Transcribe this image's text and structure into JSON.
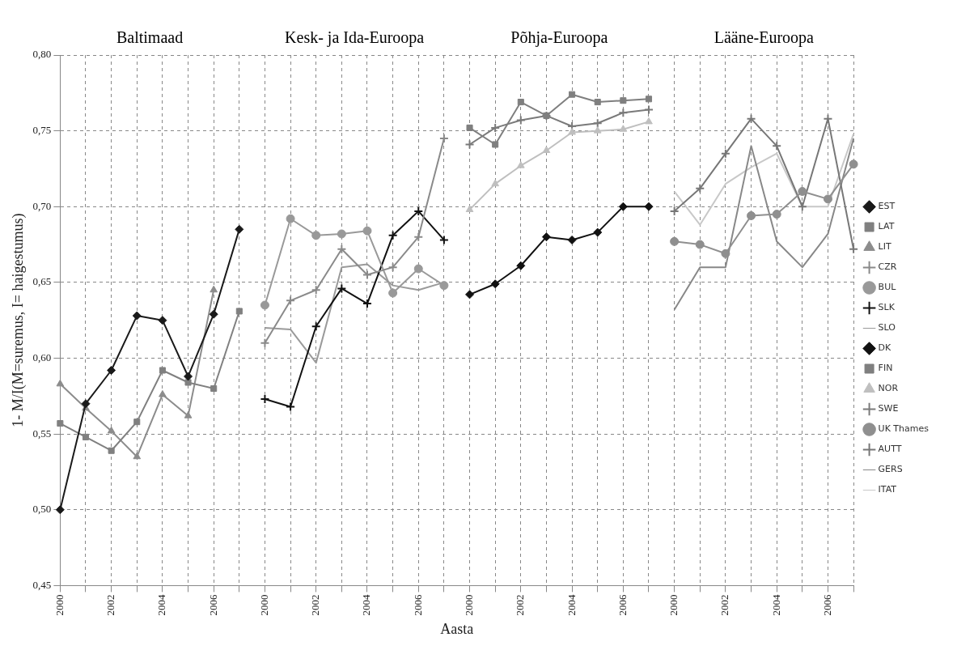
{
  "chart_data": {
    "type": "line",
    "xlabel": "Aasta",
    "ylabel": "1- M/I(M=suremus, I= haigestumus)",
    "annotations": [
      "Baltimaad",
      "Kesk- ja Ida-Euroopa",
      "Põhja-Euroopa",
      "Lääne-Euroopa"
    ],
    "categories": [
      "2000",
      null,
      "2002",
      null,
      "2004",
      null,
      "2006",
      null,
      "2000",
      null,
      "2002",
      null,
      "2004",
      null,
      "2006",
      null,
      "2000",
      null,
      "2002",
      null,
      "2004",
      null,
      "2006",
      null,
      "2000",
      null,
      "2002",
      null,
      "2004",
      null,
      "2006",
      null
    ],
    "ylim": [
      0.45,
      0.8
    ],
    "yticks": [
      {
        "value": 0.45,
        "label": "0,45"
      },
      {
        "value": 0.5,
        "label": "0,50"
      },
      {
        "value": 0.55,
        "label": "0,55"
      },
      {
        "value": 0.6,
        "label": "0,60"
      },
      {
        "value": 0.65,
        "label": "0,65"
      },
      {
        "value": 0.7,
        "label": "0,70"
      },
      {
        "value": 0.75,
        "label": "0,75"
      },
      {
        "value": 0.8,
        "label": "0,80"
      }
    ],
    "grid": true,
    "legend": "right",
    "series": [
      {
        "name": "EST",
        "color": "#1a1a1a",
        "marker": "diamond",
        "values": [
          0.5,
          0.57,
          0.592,
          0.628,
          0.625,
          0.588,
          0.629,
          0.685,
          null,
          null,
          null,
          null,
          null,
          null,
          null,
          null,
          null,
          null,
          null,
          null,
          null,
          null,
          null,
          null,
          null,
          null,
          null,
          null,
          null,
          null,
          null,
          null
        ]
      },
      {
        "name": "LAT",
        "color": "#808080",
        "marker": "square",
        "values": [
          0.557,
          0.548,
          0.539,
          0.558,
          0.592,
          0.584,
          0.58,
          0.631,
          null,
          null,
          null,
          null,
          null,
          null,
          null,
          null,
          null,
          null,
          null,
          null,
          null,
          null,
          null,
          null,
          null,
          null,
          null,
          null,
          null,
          null,
          null,
          null
        ]
      },
      {
        "name": "LIT",
        "color": "#8c8c8c",
        "marker": "triangle",
        "values": [
          0.583,
          0.567,
          0.552,
          0.535,
          0.576,
          0.562,
          0.645,
          null,
          null,
          null,
          null,
          null,
          null,
          null,
          null,
          null,
          null,
          null,
          null,
          null,
          null,
          null,
          null,
          null,
          null,
          null,
          null,
          null,
          null,
          null,
          null,
          null
        ]
      },
      {
        "name": "CZR",
        "color": "#8a8a8a",
        "marker": "cross",
        "values": [
          null,
          null,
          null,
          null,
          null,
          null,
          null,
          null,
          0.61,
          0.638,
          0.645,
          0.672,
          0.655,
          0.66,
          0.68,
          0.745,
          null,
          null,
          null,
          null,
          null,
          null,
          null,
          null,
          null,
          null,
          null,
          null,
          null,
          null,
          null,
          null
        ]
      },
      {
        "name": "BUL",
        "color": "#999999",
        "marker": "circle",
        "values": [
          null,
          null,
          null,
          null,
          null,
          null,
          null,
          null,
          0.635,
          0.692,
          0.681,
          0.682,
          0.684,
          0.643,
          0.659,
          0.648,
          null,
          null,
          null,
          null,
          null,
          null,
          null,
          null,
          null,
          null,
          null,
          null,
          null,
          null,
          null,
          null
        ]
      },
      {
        "name": "SLK",
        "color": "#111111",
        "marker": "cross",
        "values": [
          null,
          null,
          null,
          null,
          null,
          null,
          null,
          null,
          0.573,
          0.568,
          0.621,
          0.646,
          0.636,
          0.681,
          0.697,
          0.678,
          null,
          null,
          null,
          null,
          null,
          null,
          null,
          null,
          null,
          null,
          null,
          null,
          null,
          null,
          null,
          null
        ]
      },
      {
        "name": "SLO",
        "color": "#9a9a9a",
        "marker": "none",
        "values": [
          null,
          null,
          null,
          null,
          null,
          null,
          null,
          null,
          0.62,
          0.619,
          0.597,
          0.66,
          0.662,
          0.648,
          0.645,
          0.65,
          null,
          null,
          null,
          null,
          null,
          null,
          null,
          null,
          null,
          null,
          null,
          null,
          null,
          null,
          null,
          null
        ]
      },
      {
        "name": "DK",
        "color": "#111111",
        "marker": "diamond",
        "values": [
          null,
          null,
          null,
          null,
          null,
          null,
          null,
          null,
          null,
          null,
          null,
          null,
          null,
          null,
          null,
          null,
          0.642,
          0.649,
          0.661,
          0.68,
          0.678,
          0.683,
          0.7,
          0.7,
          null,
          null,
          null,
          null,
          null,
          null,
          null,
          null
        ]
      },
      {
        "name": "FIN",
        "color": "#7f7f7f",
        "marker": "square",
        "values": [
          null,
          null,
          null,
          null,
          null,
          null,
          null,
          null,
          null,
          null,
          null,
          null,
          null,
          null,
          null,
          null,
          0.752,
          0.741,
          0.769,
          0.76,
          0.774,
          0.769,
          0.77,
          0.771,
          null,
          null,
          null,
          null,
          null,
          null,
          null,
          null
        ]
      },
      {
        "name": "NOR",
        "color": "#bfbfbf",
        "marker": "triangle",
        "values": [
          null,
          null,
          null,
          null,
          null,
          null,
          null,
          null,
          null,
          null,
          null,
          null,
          null,
          null,
          null,
          null,
          0.698,
          0.715,
          0.727,
          0.737,
          0.749,
          0.75,
          0.751,
          0.756,
          null,
          null,
          null,
          null,
          null,
          null,
          null,
          null
        ]
      },
      {
        "name": "SWE",
        "color": "#7a7a7a",
        "marker": "cross",
        "values": [
          null,
          null,
          null,
          null,
          null,
          null,
          null,
          null,
          null,
          null,
          null,
          null,
          null,
          null,
          null,
          null,
          0.741,
          0.752,
          0.757,
          0.76,
          0.753,
          0.755,
          0.762,
          0.764,
          null,
          null,
          null,
          null,
          null,
          null,
          null,
          null
        ]
      },
      {
        "name": "UK Thames",
        "color": "#8f8f8f",
        "marker": "circle",
        "values": [
          null,
          null,
          null,
          null,
          null,
          null,
          null,
          null,
          null,
          null,
          null,
          null,
          null,
          null,
          null,
          null,
          null,
          null,
          null,
          null,
          null,
          null,
          null,
          null,
          0.677,
          0.675,
          0.669,
          0.694,
          0.695,
          0.71,
          0.705,
          0.728
        ]
      },
      {
        "name": "AUTT",
        "color": "#777777",
        "marker": "cross",
        "values": [
          null,
          null,
          null,
          null,
          null,
          null,
          null,
          null,
          null,
          null,
          null,
          null,
          null,
          null,
          null,
          null,
          null,
          null,
          null,
          null,
          null,
          null,
          null,
          null,
          0.697,
          0.712,
          0.735,
          0.758,
          0.74,
          0.7,
          0.758,
          0.672
        ]
      },
      {
        "name": "GERS",
        "color": "#888888",
        "marker": "none",
        "values": [
          null,
          null,
          null,
          null,
          null,
          null,
          null,
          null,
          null,
          null,
          null,
          null,
          null,
          null,
          null,
          null,
          null,
          null,
          null,
          null,
          null,
          null,
          null,
          null,
          0.632,
          0.66,
          0.66,
          0.74,
          0.677,
          0.66,
          0.682,
          0.745
        ]
      },
      {
        "name": "ITAT",
        "color": "#c8c8c8",
        "marker": "none",
        "values": [
          null,
          null,
          null,
          null,
          null,
          null,
          null,
          null,
          null,
          null,
          null,
          null,
          null,
          null,
          null,
          null,
          null,
          null,
          null,
          null,
          null,
          null,
          null,
          null,
          0.71,
          0.688,
          0.715,
          0.726,
          0.735,
          0.7,
          0.7,
          0.748
        ]
      }
    ]
  }
}
